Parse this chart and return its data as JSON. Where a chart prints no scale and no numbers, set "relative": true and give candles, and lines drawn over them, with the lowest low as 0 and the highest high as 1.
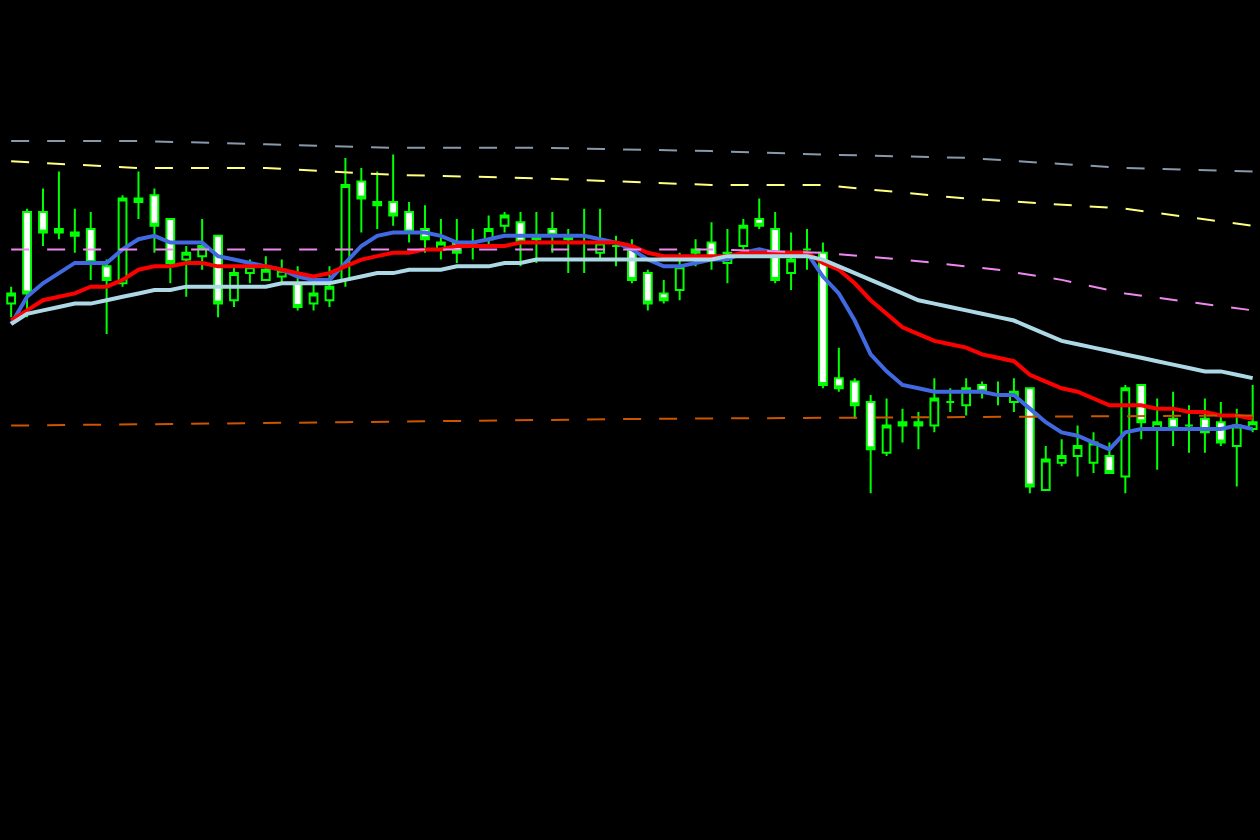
{
  "chart_data": {
    "type": "candlestick",
    "relative": true,
    "color": "#00ff00",
    "categories": [
      null,
      null,
      null,
      null,
      null,
      null,
      null,
      null,
      null,
      null,
      null,
      null,
      null,
      null,
      null,
      null,
      null,
      null,
      null,
      null,
      null,
      null,
      null,
      null,
      null,
      null,
      null,
      null,
      null,
      null,
      null,
      null,
      null,
      null,
      null,
      null,
      null,
      null,
      null,
      null,
      null,
      null,
      null,
      null,
      null,
      null,
      null,
      null,
      null,
      null,
      null,
      null,
      null,
      null,
      null,
      null,
      null,
      null,
      null,
      null,
      null,
      null,
      null,
      null,
      null,
      null,
      null,
      null,
      null,
      null,
      null,
      null,
      null,
      null,
      null,
      null,
      null,
      null,
      null
    ],
    "ohlc": [
      [
        0.56,
        0.61,
        0.52,
        0.59
      ],
      [
        0.83,
        0.84,
        0.52,
        0.59
      ],
      [
        0.83,
        0.9,
        0.73,
        0.77
      ],
      [
        0.78,
        0.95,
        0.75,
        0.77
      ],
      [
        0.77,
        0.84,
        0.71,
        0.76
      ],
      [
        0.78,
        0.83,
        0.63,
        0.68
      ],
      [
        0.67,
        0.69,
        0.47,
        0.63
      ],
      [
        0.62,
        0.88,
        0.61,
        0.87
      ],
      [
        0.87,
        0.95,
        0.81,
        0.86
      ],
      [
        0.88,
        0.9,
        0.71,
        0.79
      ],
      [
        0.81,
        0.81,
        0.62,
        0.68
      ],
      [
        0.69,
        0.73,
        0.58,
        0.71
      ],
      [
        0.7,
        0.81,
        0.66,
        0.73
      ],
      [
        0.76,
        0.76,
        0.52,
        0.56
      ],
      [
        0.57,
        0.67,
        0.55,
        0.65
      ],
      [
        0.65,
        0.69,
        0.62,
        0.67
      ],
      [
        0.63,
        0.7,
        0.63,
        0.66
      ],
      [
        0.64,
        0.69,
        0.62,
        0.66
      ],
      [
        0.62,
        0.67,
        0.54,
        0.55
      ],
      [
        0.56,
        0.62,
        0.54,
        0.59
      ],
      [
        0.57,
        0.67,
        0.55,
        0.61
      ],
      [
        0.63,
        0.99,
        0.61,
        0.91
      ],
      [
        0.92,
        0.96,
        0.77,
        0.87
      ],
      [
        0.86,
        0.95,
        0.78,
        0.85
      ],
      [
        0.86,
        1,
        0.79,
        0.82
      ],
      [
        0.83,
        0.86,
        0.74,
        0.77
      ],
      [
        0.78,
        0.85,
        0.71,
        0.75
      ],
      [
        0.72,
        0.81,
        0.69,
        0.74
      ],
      [
        0.74,
        0.81,
        0.68,
        0.71
      ],
      [
        0.74,
        0.78,
        0.69,
        0.74
      ],
      [
        0.75,
        0.82,
        0.73,
        0.78
      ],
      [
        0.79,
        0.83,
        0.77,
        0.82
      ],
      [
        0.8,
        0.83,
        0.67,
        0.74
      ],
      [
        0.76,
        0.83,
        0.68,
        0.75
      ],
      [
        0.78,
        0.83,
        0.71,
        0.76
      ],
      [
        0.75,
        0.78,
        0.65,
        0.76
      ],
      [
        0.74,
        0.84,
        0.65,
        0.74
      ],
      [
        0.71,
        0.84,
        0.69,
        0.74
      ],
      [
        0.73,
        0.76,
        0.67,
        0.73
      ],
      [
        0.72,
        0.75,
        0.62,
        0.63
      ],
      [
        0.65,
        0.66,
        0.54,
        0.56
      ],
      [
        0.59,
        0.63,
        0.56,
        0.57
      ],
      [
        0.6,
        0.71,
        0.57,
        0.67
      ],
      [
        0.71,
        0.75,
        0.67,
        0.72
      ],
      [
        0.74,
        0.8,
        0.66,
        0.69
      ],
      [
        0.68,
        0.78,
        0.62,
        0.71
      ],
      [
        0.73,
        0.81,
        0.72,
        0.79
      ],
      [
        0.81,
        0.87,
        0.78,
        0.79
      ],
      [
        0.78,
        0.83,
        0.62,
        0.63
      ],
      [
        0.65,
        0.77,
        0.6,
        0.69
      ],
      [
        0.72,
        0.78,
        0.66,
        0.72
      ],
      [
        0.71,
        0.74,
        0.31,
        0.32
      ],
      [
        0.34,
        0.43,
        0.3,
        0.31
      ],
      [
        0.33,
        0.34,
        0.22,
        0.26
      ],
      [
        0.27,
        0.29,
        0,
        0.13
      ],
      [
        0.12,
        0.28,
        0.11,
        0.2
      ],
      [
        0.21,
        0.25,
        0.15,
        0.2
      ],
      [
        0.2,
        0.24,
        0.13,
        0.21
      ],
      [
        0.2,
        0.34,
        0.18,
        0.28
      ],
      [
        0.27,
        0.31,
        0.24,
        0.27
      ],
      [
        0.26,
        0.34,
        0.23,
        0.31
      ],
      [
        0.32,
        0.33,
        0.28,
        0.3
      ],
      [
        0.29,
        0.33,
        0.26,
        0.29
      ],
      [
        0.27,
        0.34,
        0.24,
        0.3
      ],
      [
        0.31,
        0.31,
        0,
        0.02
      ],
      [
        0.01,
        0.14,
        0.01,
        0.1
      ],
      [
        0.09,
        0.16,
        0.08,
        0.11
      ],
      [
        0.11,
        0.2,
        0.05,
        0.14
      ],
      [
        0.09,
        0.18,
        0.06,
        0.15
      ],
      [
        0.11,
        0.15,
        0.06,
        0.06
      ],
      [
        0.05,
        0.32,
        0,
        0.31
      ],
      [
        0.32,
        0.32,
        0.16,
        0.21
      ],
      [
        0.19,
        0.28,
        0.07,
        0.21
      ],
      [
        0.22,
        0.3,
        0.14,
        0.19
      ],
      [
        0.2,
        0.26,
        0.12,
        0.2
      ],
      [
        0.22,
        0.28,
        0.12,
        0.18
      ],
      [
        0.21,
        0.27,
        0.14,
        0.15
      ],
      [
        0.14,
        0.25,
        0.02,
        0.2
      ],
      [
        0.19,
        0.32,
        0.18,
        0.21
      ]
    ],
    "series": [
      {
        "type": "line",
        "color": "#4169e1",
        "values": [
          0.5,
          0.58,
          0.62,
          0.65,
          0.68,
          0.68,
          0.68,
          0.72,
          0.75,
          0.76,
          0.74,
          0.74,
          0.74,
          0.7,
          0.69,
          0.68,
          0.67,
          0.66,
          0.64,
          0.63,
          0.63,
          0.68,
          0.73,
          0.76,
          0.77,
          0.77,
          0.77,
          0.76,
          0.74,
          0.74,
          0.75,
          0.76,
          0.76,
          0.76,
          0.76,
          0.76,
          0.76,
          0.75,
          0.74,
          0.72,
          0.69,
          0.67,
          0.67,
          0.68,
          0.69,
          0.69,
          0.71,
          0.72,
          0.71,
          0.71,
          0.71,
          0.64,
          0.59,
          0.51,
          0.41,
          0.36,
          0.32,
          0.31,
          0.3,
          0.3,
          0.3,
          0.3,
          0.29,
          0.29,
          0.25,
          0.21,
          0.18,
          0.17,
          0.15,
          0.13,
          0.18,
          0.19,
          0.19,
          0.19,
          0.19,
          0.19,
          0.19,
          0.2,
          0.19
        ]
      },
      {
        "type": "line",
        "color": "#ff0000",
        "values": [
          0.51,
          0.54,
          0.57,
          0.58,
          0.59,
          0.61,
          0.61,
          0.63,
          0.66,
          0.67,
          0.67,
          0.68,
          0.68,
          0.67,
          0.67,
          0.67,
          0.67,
          0.66,
          0.65,
          0.64,
          0.65,
          0.67,
          0.69,
          0.7,
          0.71,
          0.71,
          0.72,
          0.72,
          0.73,
          0.73,
          0.73,
          0.73,
          0.74,
          0.74,
          0.74,
          0.74,
          0.74,
          0.74,
          0.74,
          0.73,
          0.71,
          0.7,
          0.7,
          0.7,
          0.7,
          0.7,
          0.71,
          0.71,
          0.71,
          0.71,
          0.71,
          0.68,
          0.66,
          0.62,
          0.57,
          0.53,
          0.49,
          0.47,
          0.45,
          0.44,
          0.43,
          0.41,
          0.4,
          0.39,
          0.35,
          0.33,
          0.31,
          0.3,
          0.28,
          0.26,
          0.26,
          0.26,
          0.25,
          0.25,
          0.24,
          0.24,
          0.23,
          0.23,
          0.22
        ]
      },
      {
        "type": "line",
        "color": "#add8e6",
        "values": [
          0.5,
          0.53,
          0.54,
          0.55,
          0.56,
          0.56,
          0.57,
          0.58,
          0.59,
          0.6,
          0.6,
          0.61,
          0.61,
          0.61,
          0.61,
          0.61,
          0.61,
          0.62,
          0.62,
          0.62,
          0.62,
          0.63,
          0.64,
          0.65,
          0.65,
          0.66,
          0.66,
          0.66,
          0.67,
          0.67,
          0.67,
          0.68,
          0.68,
          0.69,
          0.69,
          0.69,
          0.69,
          0.69,
          0.69,
          0.69,
          0.69,
          0.69,
          0.69,
          0.69,
          0.69,
          0.7,
          0.7,
          0.7,
          0.7,
          0.7,
          0.7,
          0.69,
          0.67,
          0.65,
          0.63,
          0.61,
          0.59,
          0.57,
          0.56,
          0.55,
          0.54,
          0.53,
          0.52,
          0.51,
          0.49,
          0.47,
          0.45,
          0.44,
          0.43,
          0.42,
          0.41,
          0.4,
          0.39,
          0.38,
          0.37,
          0.36,
          0.36,
          0.35,
          0.34
        ]
      },
      {
        "type": "line",
        "color": "#8899aa",
        "line_style": "dashed",
        "values": [
          1.04,
          null,
          null,
          null,
          null,
          null,
          null,
          null,
          1.04,
          null,
          null,
          null,
          null,
          null,
          null,
          null,
          1.03,
          null,
          null,
          null,
          null,
          null,
          null,
          null,
          1.02,
          null,
          null,
          null,
          null,
          null,
          null,
          null,
          null,
          1.02,
          null,
          null,
          null,
          null,
          null,
          null,
          null,
          null,
          null,
          null,
          1.01,
          null,
          null,
          null,
          null,
          null,
          null,
          1.0,
          null,
          null,
          null,
          null,
          null,
          null,
          null,
          null,
          0.99,
          null,
          null,
          null,
          null,
          null,
          null,
          null,
          null,
          null,
          0.96,
          null,
          null,
          null,
          null,
          null,
          null,
          null,
          0.95
        ]
      },
      {
        "type": "line",
        "color": "#ffff80",
        "line_style": "dashed",
        "values": [
          0.98,
          null,
          null,
          null,
          null,
          null,
          null,
          null,
          0.96,
          null,
          null,
          null,
          null,
          null,
          null,
          null,
          0.96,
          null,
          null,
          null,
          null,
          null,
          null,
          null,
          0.94,
          null,
          null,
          null,
          null,
          null,
          null,
          null,
          null,
          0.93,
          null,
          null,
          null,
          null,
          null,
          null,
          null,
          null,
          null,
          null,
          0.91,
          null,
          null,
          null,
          null,
          null,
          null,
          0.91,
          null,
          null,
          null,
          null,
          null,
          null,
          null,
          null,
          0.87,
          null,
          null,
          null,
          null,
          null,
          null,
          null,
          null,
          null,
          0.84,
          null,
          null,
          null,
          null,
          null,
          null,
          null,
          0.79
        ]
      },
      {
        "type": "line",
        "color": "#ee88ee",
        "line_style": "dashed",
        "values": [
          0.72,
          null,
          null,
          null,
          null,
          null,
          null,
          null,
          null,
          null,
          null,
          null,
          null,
          null,
          null,
          null,
          null,
          null,
          null,
          null,
          null,
          null,
          null,
          null,
          0.72,
          null,
          null,
          null,
          null,
          null,
          null,
          null,
          null,
          null,
          null,
          null,
          null,
          null,
          null,
          null,
          null,
          null,
          null,
          null,
          0.72,
          null,
          null,
          null,
          null,
          null,
          null,
          0.71,
          null,
          null,
          null,
          null,
          0.69,
          null,
          null,
          null,
          null,
          null,
          0.66,
          null,
          null,
          null,
          0.63,
          null,
          null,
          null,
          0.59,
          null,
          null,
          null,
          null,
          null,
          null,
          null,
          0.54
        ]
      },
      {
        "type": "line",
        "color": "#cc5500",
        "line_style": "dashed",
        "values": [
          0.2,
          null,
          null,
          null,
          null,
          null,
          null,
          null,
          null,
          null,
          null,
          null,
          null,
          null,
          null,
          null,
          null,
          null,
          null,
          null,
          null,
          0.21,
          null,
          null,
          null,
          null,
          null,
          null,
          null,
          null,
          null,
          null,
          null,
          null,
          null,
          null,
          null,
          null,
          null,
          null,
          0.22,
          null,
          null,
          null,
          null,
          null,
          null,
          null,
          null,
          null,
          null,
          null,
          null,
          null,
          null,
          null,
          null,
          null,
          null,
          null,
          null,
          null,
          null,
          null,
          null,
          null,
          null,
          null,
          null,
          null,
          null,
          null,
          null,
          null,
          null,
          null,
          null,
          null,
          0.23
        ]
      }
    ]
  }
}
